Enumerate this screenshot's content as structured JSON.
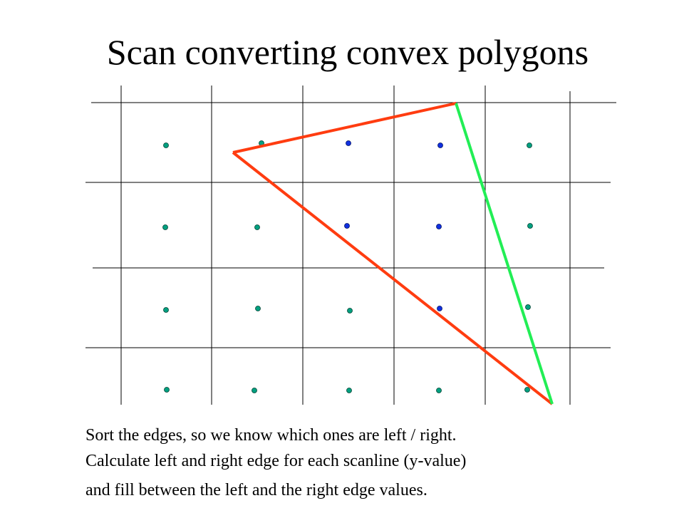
{
  "header": {
    "title": "Scan converting convex polygons"
  },
  "body": {
    "lines": [
      "Sort the edges, so we know which ones are left / right.",
      "Calculate left and right edge for each scanline (y-value)",
      "and fill between the left and the right edge values."
    ]
  }
}
